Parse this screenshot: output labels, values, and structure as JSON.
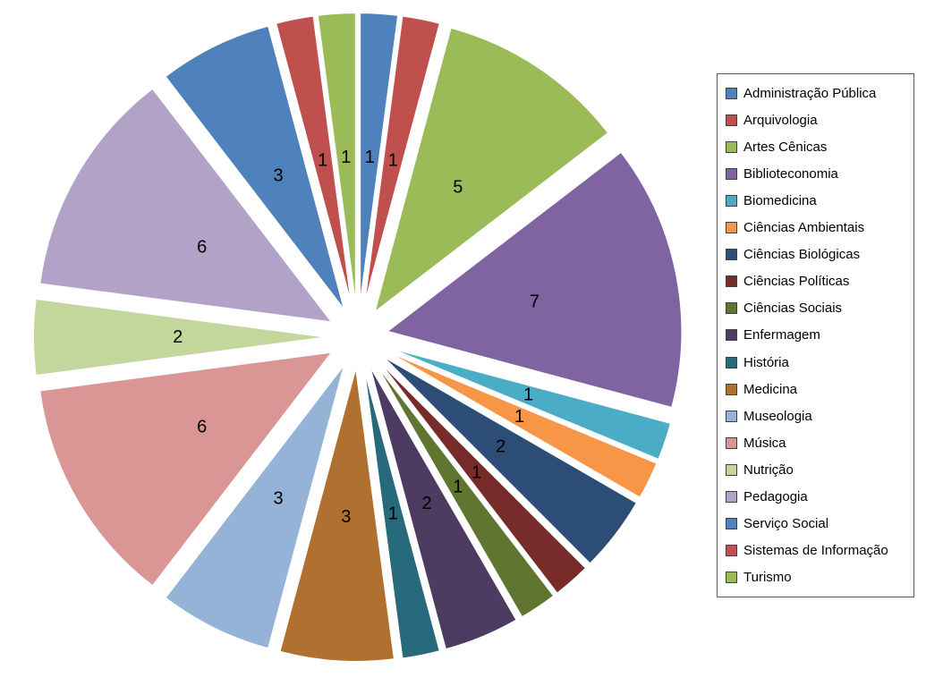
{
  "page": {
    "background": "#FFFFFF"
  },
  "chart_data": {
    "type": "pie",
    "exploded": true,
    "title": "",
    "legend_position": "right",
    "start_angle_deg": 0,
    "direction": "clockwise",
    "total": 48,
    "data_labels": "values",
    "categories": [
      "Administração Pública",
      "Arquivologia",
      "Artes Cênicas",
      "Biblioteconomia",
      "Biomedicina",
      "Ciências Ambientais",
      "Ciências Biológicas",
      "Ciências Políticas",
      "Ciências Sociais",
      "Enfermagem",
      "História",
      "Medicina",
      "Museologia",
      "Música",
      "Nutrição",
      "Pedagogia",
      "Serviço Social",
      "Sistemas de Informação",
      "Turismo"
    ],
    "values": [
      1,
      1,
      5,
      7,
      1,
      1,
      2,
      1,
      1,
      2,
      1,
      3,
      3,
      6,
      2,
      6,
      3,
      1,
      1
    ],
    "colors": [
      "#4F81BD",
      "#C0504D",
      "#9BBB59",
      "#8064A2",
      "#4BACC6",
      "#F79646",
      "#2C4D75",
      "#772C2A",
      "#5F7530",
      "#4D3B62",
      "#276A7C",
      "#B0702F",
      "#95B3D7",
      "#D99694",
      "#C3D69B",
      "#B3A2C7",
      "#4F81BD",
      "#C0504D",
      "#9BBB59"
    ],
    "legend_border_color": "#595959",
    "slice_separator_color": "#FFFFFF",
    "label_color": "#000000"
  }
}
